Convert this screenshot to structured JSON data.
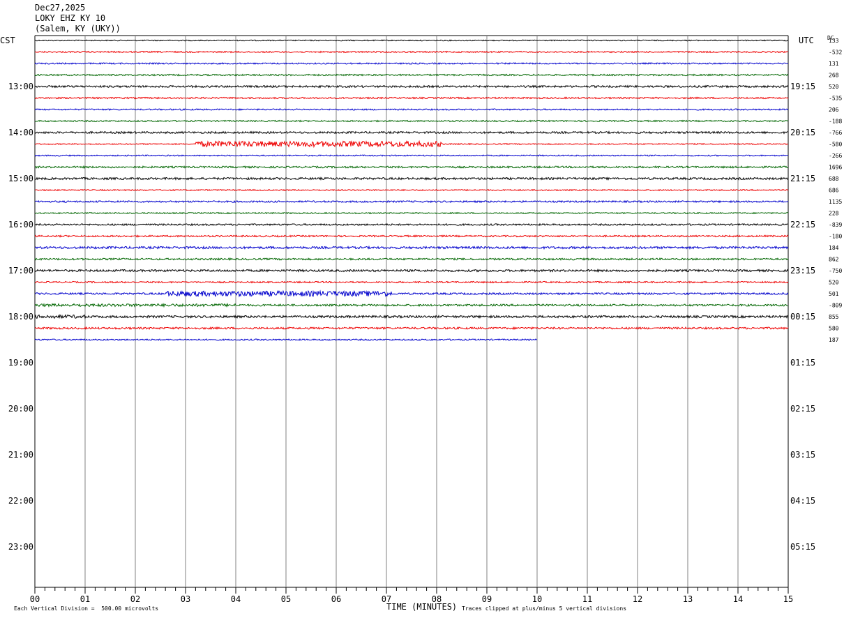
{
  "header": {
    "date": "Dec27,2025",
    "station": "LOKY EHZ KY 10",
    "location": "(Salem, KY (UKY))"
  },
  "left_tz": "CST",
  "right_tz": "UTC",
  "dc_label": "DC",
  "footer": {
    "vertical_division": "Each Vertical Division =  500.00 microvolts",
    "xlabel": "TIME (MINUTES)",
    "clip_note": "Traces clipped at plus/minus 5 vertical divisions"
  },
  "chart_data": {
    "type": "line",
    "title": "LOKY EHZ KY 10",
    "xlabel": "TIME (MINUTES)",
    "xlim": [
      0,
      15
    ],
    "x_ticks": [
      "00",
      "01",
      "02",
      "03",
      "04",
      "05",
      "06",
      "07",
      "08",
      "09",
      "10",
      "11",
      "12",
      "13",
      "14",
      "15"
    ],
    "left_hour_labels": [
      "13:00",
      "14:00",
      "15:00",
      "16:00",
      "17:00",
      "18:00",
      "19:00",
      "20:00",
      "21:00",
      "22:00",
      "23:00"
    ],
    "right_hour_labels": [
      "19:15",
      "20:15",
      "21:15",
      "22:15",
      "23:15",
      "00:15",
      "01:15",
      "02:15",
      "03:15",
      "04:15",
      "05:15"
    ],
    "trace_colors": [
      "#000000",
      "#ee0000",
      "#0000cc",
      "#006600"
    ],
    "trace_interval_minutes": 15,
    "traces": [
      {
        "start": "12:00",
        "dc": "133",
        "color": "#000000",
        "amplitude": 0.8,
        "end_minute": 15
      },
      {
        "start": "12:15",
        "dc": "-532",
        "color": "#ee0000",
        "amplitude": 1.0,
        "end_minute": 15
      },
      {
        "start": "12:30",
        "dc": "131",
        "color": "#0000cc",
        "amplitude": 1.0,
        "end_minute": 15
      },
      {
        "start": "12:45",
        "dc": "268",
        "color": "#006600",
        "amplitude": 1.1,
        "end_minute": 15
      },
      {
        "start": "13:00",
        "dc": "520",
        "color": "#000000",
        "amplitude": 1.4,
        "end_minute": 15
      },
      {
        "start": "13:15",
        "dc": "-535",
        "color": "#ee0000",
        "amplitude": 1.1,
        "end_minute": 15
      },
      {
        "start": "13:30",
        "dc": "206",
        "color": "#0000cc",
        "amplitude": 1.0,
        "end_minute": 15
      },
      {
        "start": "13:45",
        "dc": "-188",
        "color": "#006600",
        "amplitude": 1.0,
        "end_minute": 15
      },
      {
        "start": "14:00",
        "dc": "-766",
        "color": "#000000",
        "amplitude": 1.4,
        "end_minute": 15
      },
      {
        "start": "14:15",
        "dc": "-580",
        "color": "#ee0000",
        "amplitude": 0.8,
        "end_minute": 15
      },
      {
        "start": "14:30",
        "dc": "-266",
        "color": "#0000cc",
        "amplitude": 0.9,
        "end_minute": 15
      },
      {
        "start": "14:45",
        "dc": "1696",
        "color": "#006600",
        "amplitude": 1.3,
        "end_minute": 15
      },
      {
        "start": "15:00",
        "dc": "688",
        "color": "#000000",
        "amplitude": 1.5,
        "end_minute": 15
      },
      {
        "start": "15:15",
        "dc": "686",
        "color": "#ee0000",
        "amplitude": 0.9,
        "end_minute": 15
      },
      {
        "start": "15:30",
        "dc": "1135",
        "color": "#0000cc",
        "amplitude": 1.2,
        "end_minute": 15
      },
      {
        "start": "15:45",
        "dc": "228",
        "color": "#006600",
        "amplitude": 0.9,
        "end_minute": 15
      },
      {
        "start": "16:00",
        "dc": "-839",
        "color": "#000000",
        "amplitude": 1.2,
        "end_minute": 15
      },
      {
        "start": "16:15",
        "dc": "-180",
        "color": "#ee0000",
        "amplitude": 1.2,
        "end_minute": 15
      },
      {
        "start": "16:30",
        "dc": "184",
        "color": "#0000cc",
        "amplitude": 1.6,
        "end_minute": 15
      },
      {
        "start": "16:45",
        "dc": "862",
        "color": "#006600",
        "amplitude": 1.3,
        "end_minute": 15
      },
      {
        "start": "17:00",
        "dc": "-750",
        "color": "#000000",
        "amplitude": 1.5,
        "end_minute": 15
      },
      {
        "start": "17:15",
        "dc": "520",
        "color": "#ee0000",
        "amplitude": 1.1,
        "end_minute": 15
      },
      {
        "start": "17:30",
        "dc": "501",
        "color": "#0000cc",
        "amplitude": 1.3,
        "end_minute": 15
      },
      {
        "start": "17:45",
        "dc": "-809",
        "color": "#006600",
        "amplitude": 1.4,
        "end_minute": 15
      },
      {
        "start": "18:00",
        "dc": "855",
        "color": "#000000",
        "amplitude": 1.6,
        "end_minute": 15
      },
      {
        "start": "18:15",
        "dc": "580",
        "color": "#ee0000",
        "amplitude": 1.4,
        "end_minute": 15
      },
      {
        "start": "18:30",
        "dc": "187",
        "color": "#0000cc",
        "amplitude": 1.0,
        "end_minute": 10.0
      }
    ],
    "bursts": [
      {
        "trace_start": "14:15",
        "from_minute": 3.2,
        "to_minute": 8.1,
        "amplitude": 4.0
      },
      {
        "trace_start": "17:30",
        "from_minute": 2.6,
        "to_minute": 7.1,
        "amplitude": 3.8
      },
      {
        "trace_start": "17:45",
        "from_minute": 0.0,
        "to_minute": 4.0,
        "amplitude": 2.0
      },
      {
        "trace_start": "18:00",
        "from_minute": 0.0,
        "to_minute": 1.0,
        "amplitude": 2.5
      }
    ]
  }
}
